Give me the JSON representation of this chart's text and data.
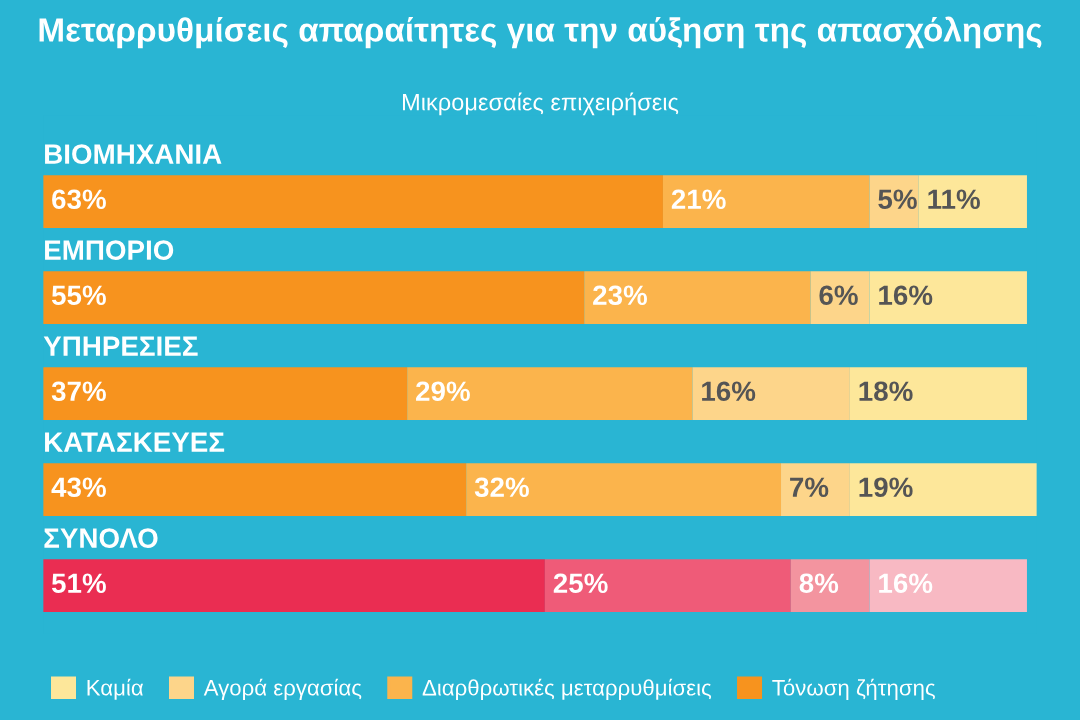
{
  "chart_data": {
    "type": "bar",
    "orientation": "horizontal",
    "stacked": true,
    "title": "Μεταρρυθμίσεις απαραίτητες για την αύξηση της απασχόλησης",
    "subtitle": "Μικρομεσαίες επιχειρήσεις",
    "categories": [
      "ΒΙΟΜΗΧΑΝΙΑ",
      "ΕΜΠΟΡΙΟ",
      "ΥΠΗΡΕΣΙΕΣ",
      "ΚΑΤΑΣΚΕΥΕΣ",
      "ΣΥΝΟΛΟ"
    ],
    "series": [
      {
        "name": "Τόνωση ζήτησης",
        "color": "#f7931e",
        "colors": [
          "#f7931e",
          "#f7931e",
          "#f7931e",
          "#f7931e",
          "#ea2d52"
        ],
        "values": [
          63,
          55,
          37,
          43,
          51
        ],
        "value_labels": [
          "63%",
          "55%",
          "37%",
          "43%",
          "51%"
        ]
      },
      {
        "name": "Διαρθρωτικές μεταρρυθμίσεις",
        "color": "#fbb44c",
        "colors": [
          "#fbb44c",
          "#fbb44c",
          "#fbb44c",
          "#fbb44c",
          "#ef5b78"
        ],
        "values": [
          21,
          23,
          29,
          32,
          25
        ],
        "value_labels": [
          "21%",
          "23%",
          "29%",
          "32%",
          "25%"
        ]
      },
      {
        "name": "Αγορά εργασίας",
        "color": "#fdd58a",
        "colors": [
          "#fdd58a",
          "#fdd58a",
          "#fdd58a",
          "#fdd58a",
          "#f3949f"
        ],
        "values": [
          5,
          6,
          16,
          7,
          8
        ],
        "value_labels": [
          "5%",
          "6%",
          "16%",
          "7%",
          "8%"
        ]
      },
      {
        "name": "Καμία",
        "color": "#fde79a",
        "colors": [
          "#fde79a",
          "#fde79a",
          "#fde79a",
          "#fde79a",
          "#f8b9c3"
        ],
        "values": [
          11,
          16,
          18,
          19,
          16
        ],
        "value_labels": [
          "11%",
          "16%",
          "18%",
          "19%",
          "16%"
        ]
      }
    ],
    "legend": "bottom"
  }
}
